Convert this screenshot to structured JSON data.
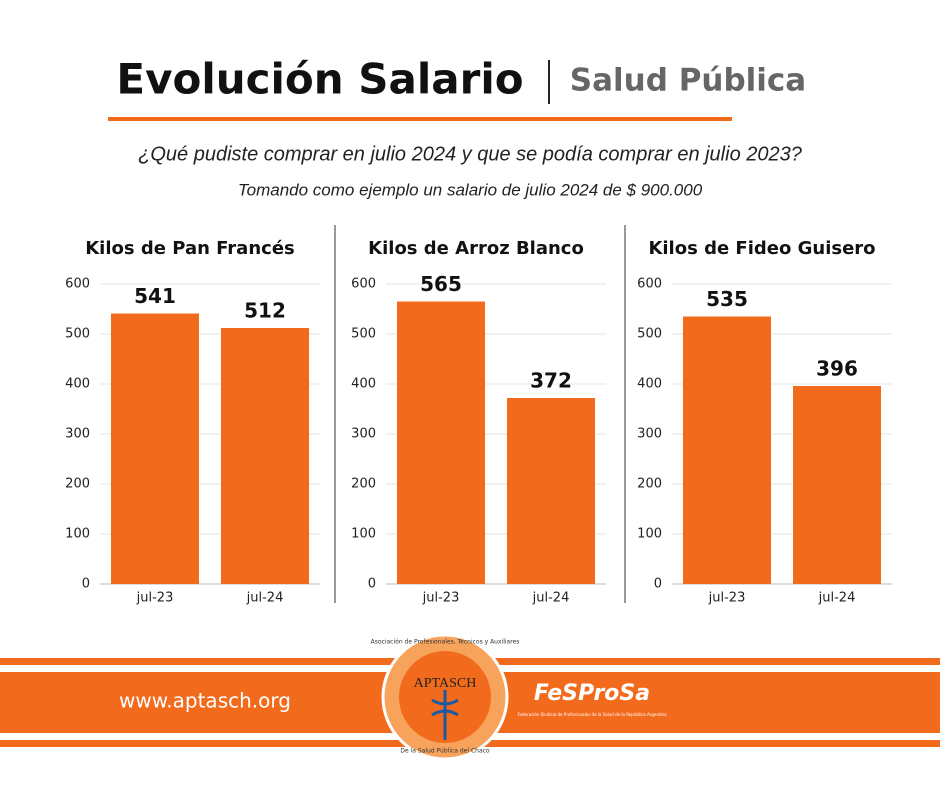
{
  "header": {
    "title": "Evolución Salario",
    "section": "Salud Pública",
    "question": "¿Qué pudiste comprar en julio 2024 y que se podía comprar en julio 2023?",
    "note": "Tomando como ejemplo un salario de julio 2024 de $ 900.000"
  },
  "chart_data": [
    {
      "type": "bar",
      "title": "Kilos de Pan Francés",
      "categories": [
        "jul-23",
        "jul-24"
      ],
      "values": [
        541,
        512
      ],
      "color": "#f26b1d",
      "ylim": [
        0,
        600
      ],
      "yticks": [
        0,
        100,
        200,
        300,
        400,
        500,
        600
      ],
      "grid": true
    },
    {
      "type": "bar",
      "title": "Kilos de Arroz Blanco",
      "categories": [
        "jul-23",
        "jul-24"
      ],
      "values": [
        565,
        372
      ],
      "color": "#f26b1d",
      "ylim": [
        0,
        600
      ],
      "yticks": [
        0,
        100,
        200,
        300,
        400,
        500,
        600
      ],
      "grid": true
    },
    {
      "type": "bar",
      "title": "Kilos de Fideo Guisero",
      "categories": [
        "jul-23",
        "jul-24"
      ],
      "values": [
        535,
        396
      ],
      "color": "#f26b1d",
      "ylim": [
        0,
        600
      ],
      "yticks": [
        0,
        100,
        200,
        300,
        400,
        500,
        600
      ],
      "grid": true
    }
  ],
  "footer": {
    "website": "www.aptasch.org",
    "logo1": "APTASCH",
    "logo1_ring": "Asociación de Profesionales, Técnicos y Auxiliares",
    "logo1_bottom": "De la Salud Pública del Chaco",
    "logo2": "FeSProSa",
    "logo2_sub": "Federación Sindical de Profesionales de la Salud de la República Argentina"
  }
}
